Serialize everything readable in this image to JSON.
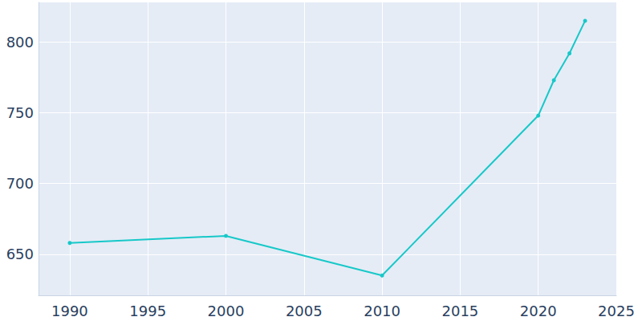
{
  "chart_data": {
    "type": "line",
    "x": [
      1990,
      2000,
      2010,
      2020,
      2021,
      2022,
      2023
    ],
    "values": [
      658,
      663,
      635,
      748,
      773,
      792,
      815
    ],
    "color": "#17c8c8",
    "marker": "circle",
    "xlim": [
      1988,
      2025
    ],
    "xticks": [
      1990,
      1995,
      2000,
      2005,
      2010,
      2015,
      2020,
      2025
    ],
    "ylim": [
      621,
      828
    ],
    "yticks": [
      650,
      700,
      750,
      800
    ],
    "grid": true
  }
}
